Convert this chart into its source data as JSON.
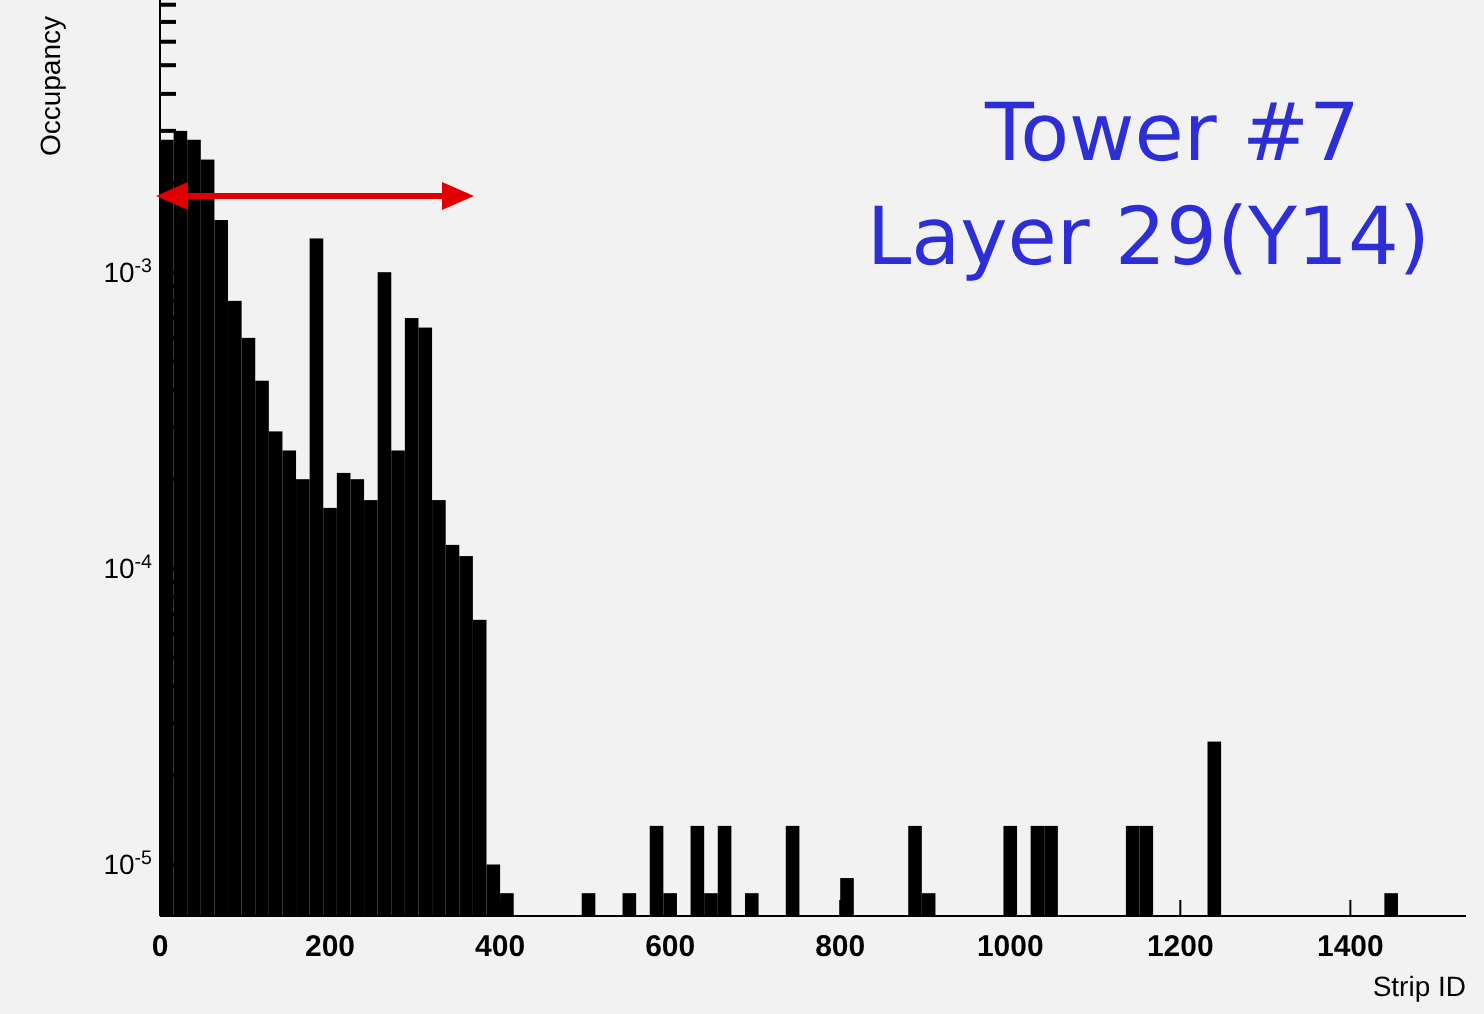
{
  "chart_data": {
    "type": "histogram",
    "xlabel": "Strip ID",
    "ylabel": "Occupancy",
    "color": "#000000",
    "log": "y",
    "annotations": [
      "Tower #7",
      "Layer 29(Y14)"
    ],
    "bins": [
      0,
      16,
      32,
      48,
      64,
      80,
      96,
      112,
      128,
      144,
      160,
      176,
      192,
      208,
      224,
      240,
      256,
      272,
      288,
      304,
      320,
      336,
      352,
      368,
      384,
      400,
      416,
      496,
      512,
      544,
      560,
      576,
      592,
      608,
      624,
      640,
      656,
      672,
      688,
      704,
      736,
      752,
      800,
      816,
      880,
      896,
      912,
      992,
      1008,
      1024,
      1040,
      1056,
      1136,
      1152,
      1168,
      1232,
      1248,
      1440,
      1456
    ],
    "values": [
      0.0028,
      0.003,
      0.0028,
      0.0024,
      0.0015,
      0.0008,
      0.0006,
      0.00043,
      0.00029,
      0.00025,
      0.0002,
      0.0013,
      0.00016,
      0.00021,
      0.0002,
      0.00017,
      0.001,
      0.00025,
      0.0007,
      0.00065,
      0.00017,
      0.00012,
      0.00011,
      6.7e-05,
      1e-05,
      8e-06,
      null,
      8e-06,
      null,
      8e-06,
      null,
      1.35e-05,
      8e-06,
      null,
      1.35e-05,
      8e-06,
      1.35e-05,
      null,
      8e-06,
      null,
      1.35e-05,
      null,
      9e-06,
      null,
      1.35e-05,
      8e-06,
      null,
      1.35e-05,
      null,
      1.35e-05,
      1.35e-05,
      null,
      1.35e-05,
      1.35e-05,
      null,
      2.6e-05,
      null,
      8e-06
    ],
    "xlim": [
      0,
      1536
    ],
    "xticks": [
      0,
      200,
      400,
      600,
      800,
      1000,
      1200,
      1400
    ],
    "ylim": [
      6.7e-06,
      0.0083
    ],
    "yticks": [
      {
        "value": 1e-05,
        "label": "10$^{-5}$"
      },
      {
        "value": 2e-05,
        "label": null
      },
      {
        "value": 3e-05,
        "label": null
      },
      {
        "value": 4e-05,
        "label": null
      },
      {
        "value": 5e-05,
        "label": null
      },
      {
        "value": 6e-05,
        "label": null
      },
      {
        "value": 7e-05,
        "label": null
      },
      {
        "value": 8e-05,
        "label": null
      },
      {
        "value": 9e-05,
        "label": null
      },
      {
        "value": 0.0001,
        "label": "10$^{-4}$"
      },
      {
        "value": 0.0002,
        "label": null
      },
      {
        "value": 0.0003,
        "label": null
      },
      {
        "value": 0.0004,
        "label": null
      },
      {
        "value": 0.0005,
        "label": null
      },
      {
        "value": 0.0006,
        "label": null
      },
      {
        "value": 0.0007,
        "label": null
      },
      {
        "value": 0.0008,
        "label": null
      },
      {
        "value": 0.0009,
        "label": null
      },
      {
        "value": 0.001,
        "label": "10$^{-3}$"
      },
      {
        "value": 0.002,
        "label": null
      },
      {
        "value": 0.003,
        "label": null
      },
      {
        "value": 0.004,
        "label": null
      },
      {
        "value": 0.005,
        "label": null
      },
      {
        "value": 0.006,
        "label": null
      },
      {
        "value": 0.007,
        "label": null
      },
      {
        "value": 0.008,
        "label": null
      }
    ],
    "grid": false
  }
}
